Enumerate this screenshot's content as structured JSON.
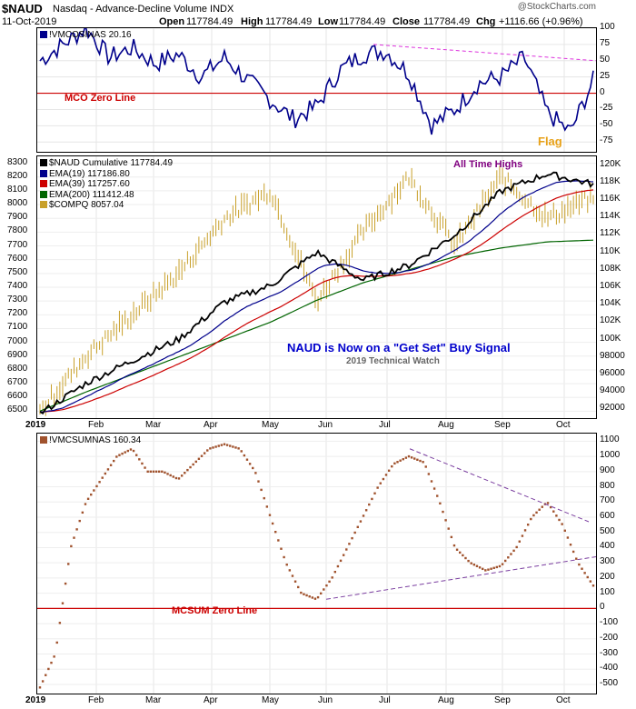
{
  "header": {
    "symbol": "$NAUD",
    "name": "Nasdaq - Advance-Decline Volume INDX",
    "date": "11-Oct-2019",
    "open_label": "Open",
    "open": "117784.49",
    "high_label": "High",
    "high": "117784.49",
    "low_label": "Low",
    "low": "117784.49",
    "close_label": "Close",
    "close": "117784.49",
    "chg_label": "Chg",
    "chg": "+1116.66 (+0.96%)",
    "watermark": "@StockCharts.com"
  },
  "top_panel": {
    "legend": "!VMCOSINAS 20.16",
    "zero_line_label": "MCO Zero Line",
    "flag_label": "Flag",
    "y_ticks": [
      "100",
      "75",
      "50",
      "25",
      "0",
      "-25",
      "-50",
      "-75"
    ]
  },
  "middle_panel": {
    "legend": [
      {
        "text": "$NAUD Cumulative 117784.49",
        "color": "#000000"
      },
      {
        "text": "EMA(19) 117186.80",
        "color": "#00008b"
      },
      {
        "text": "EMA(39) 117257.60",
        "color": "#cc0000"
      },
      {
        "text": "EMA(200) 111412.48",
        "color": "#006400"
      },
      {
        "text": "$COMPQ 8057.04",
        "color": "#c8a02a"
      }
    ],
    "annotation_ath": "All Time Highs",
    "annotation_signal": "NAUD is Now on a \"Get Set\" Buy Signal",
    "annotation_source": "2019 Technical Watch",
    "left_ticks": [
      "8300",
      "8200",
      "8100",
      "8000",
      "7900",
      "7800",
      "7700",
      "7600",
      "7500",
      "7400",
      "7300",
      "7200",
      "7100",
      "7000",
      "6900",
      "6800",
      "6700",
      "6600",
      "6500"
    ],
    "right_ticks": [
      "120K",
      "118K",
      "116K",
      "114K",
      "112K",
      "110K",
      "108K",
      "106K",
      "104K",
      "102K",
      "100K",
      "98000",
      "96000",
      "94000",
      "92000"
    ]
  },
  "bottom_panel": {
    "legend": "!VMCSUMNAS 160.34",
    "zero_line_label": "MCSUM Zero Line",
    "y_ticks": [
      "1100",
      "1000",
      "900",
      "800",
      "700",
      "600",
      "500",
      "400",
      "300",
      "200",
      "100",
      "0",
      "-100",
      "-200",
      "-300",
      "-400",
      "-500"
    ]
  },
  "x_axis": {
    "year": "2019",
    "months": [
      "Feb",
      "Mar",
      "Apr",
      "May",
      "Jun",
      "Jul",
      "Aug",
      "Sep",
      "Oct"
    ]
  },
  "chart_data": [
    {
      "type": "line",
      "series": [
        {
          "name": "!VMCOSINAS",
          "color": "#00008b"
        }
      ],
      "x": [
        "Jan",
        "Jan",
        "Jan",
        "Feb",
        "Feb",
        "Mar",
        "Mar",
        "Apr",
        "Apr",
        "May",
        "May",
        "May",
        "Jun",
        "Jun",
        "Jul",
        "Jul",
        "Jul",
        "Aug",
        "Aug",
        "Aug",
        "Sep",
        "Sep",
        "Sep",
        "Oct",
        "Oct"
      ],
      "values": [
        50,
        75,
        100,
        55,
        70,
        45,
        60,
        25,
        55,
        20,
        -10,
        -40,
        -20,
        35,
        60,
        65,
        30,
        -50,
        -25,
        15,
        25,
        55,
        -30,
        -60,
        20
      ],
      "ylim": [
        -90,
        100
      ],
      "reference_lines": [
        "MCO Zero Line at 0"
      ],
      "trendline": "dashed magenta, declining from July to October"
    },
    {
      "type": "line",
      "series": [
        {
          "name": "$NAUD Cumulative",
          "color": "#000000"
        },
        {
          "name": "EMA(19)",
          "color": "#00008b"
        },
        {
          "name": "EMA(39)",
          "color": "#cc0000"
        },
        {
          "name": "EMA(200)",
          "color": "#006400"
        },
        {
          "name": "$COMPQ",
          "color": "#c8a02a",
          "style": "bars"
        }
      ],
      "naud_values_k": [
        91.5,
        95,
        97.6,
        100,
        104.3,
        106.2,
        110,
        106.8,
        108.5,
        112,
        117,
        119,
        117.8
      ],
      "compq_values": [
        6500,
        6900,
        7200,
        7500,
        7900,
        8100,
        7300,
        7800,
        8200,
        7700,
        8200,
        7900,
        8057
      ],
      "left_ylim": [
        6450,
        8350
      ],
      "right_ylim_k": [
        91,
        121
      ],
      "annotations": [
        "All Time Highs",
        "NAUD is Now on a \"Get Set\" Buy Signal",
        "2019 Technical Watch"
      ]
    },
    {
      "type": "scatter",
      "series": [
        {
          "name": "!VMCSUMNAS",
          "color": "#a0522d"
        }
      ],
      "values": [
        -520,
        -300,
        400,
        700,
        850,
        1000,
        1050,
        900,
        900,
        850,
        950,
        1050,
        1080,
        1050,
        900,
        600,
        300,
        100,
        60,
        200,
        400,
        600,
        800,
        950,
        1000,
        960,
        700,
        400,
        300,
        250,
        280,
        400,
        600,
        700,
        550,
        300,
        150
      ],
      "ylim": [
        -560,
        1150
      ],
      "reference_lines": [
        "MCSUM Zero Line at 0"
      ],
      "trendlines": [
        "dashed purple declining from Jul to Oct (upper)",
        "dashed purple rising from Jun to Oct (lower)"
      ]
    }
  ]
}
